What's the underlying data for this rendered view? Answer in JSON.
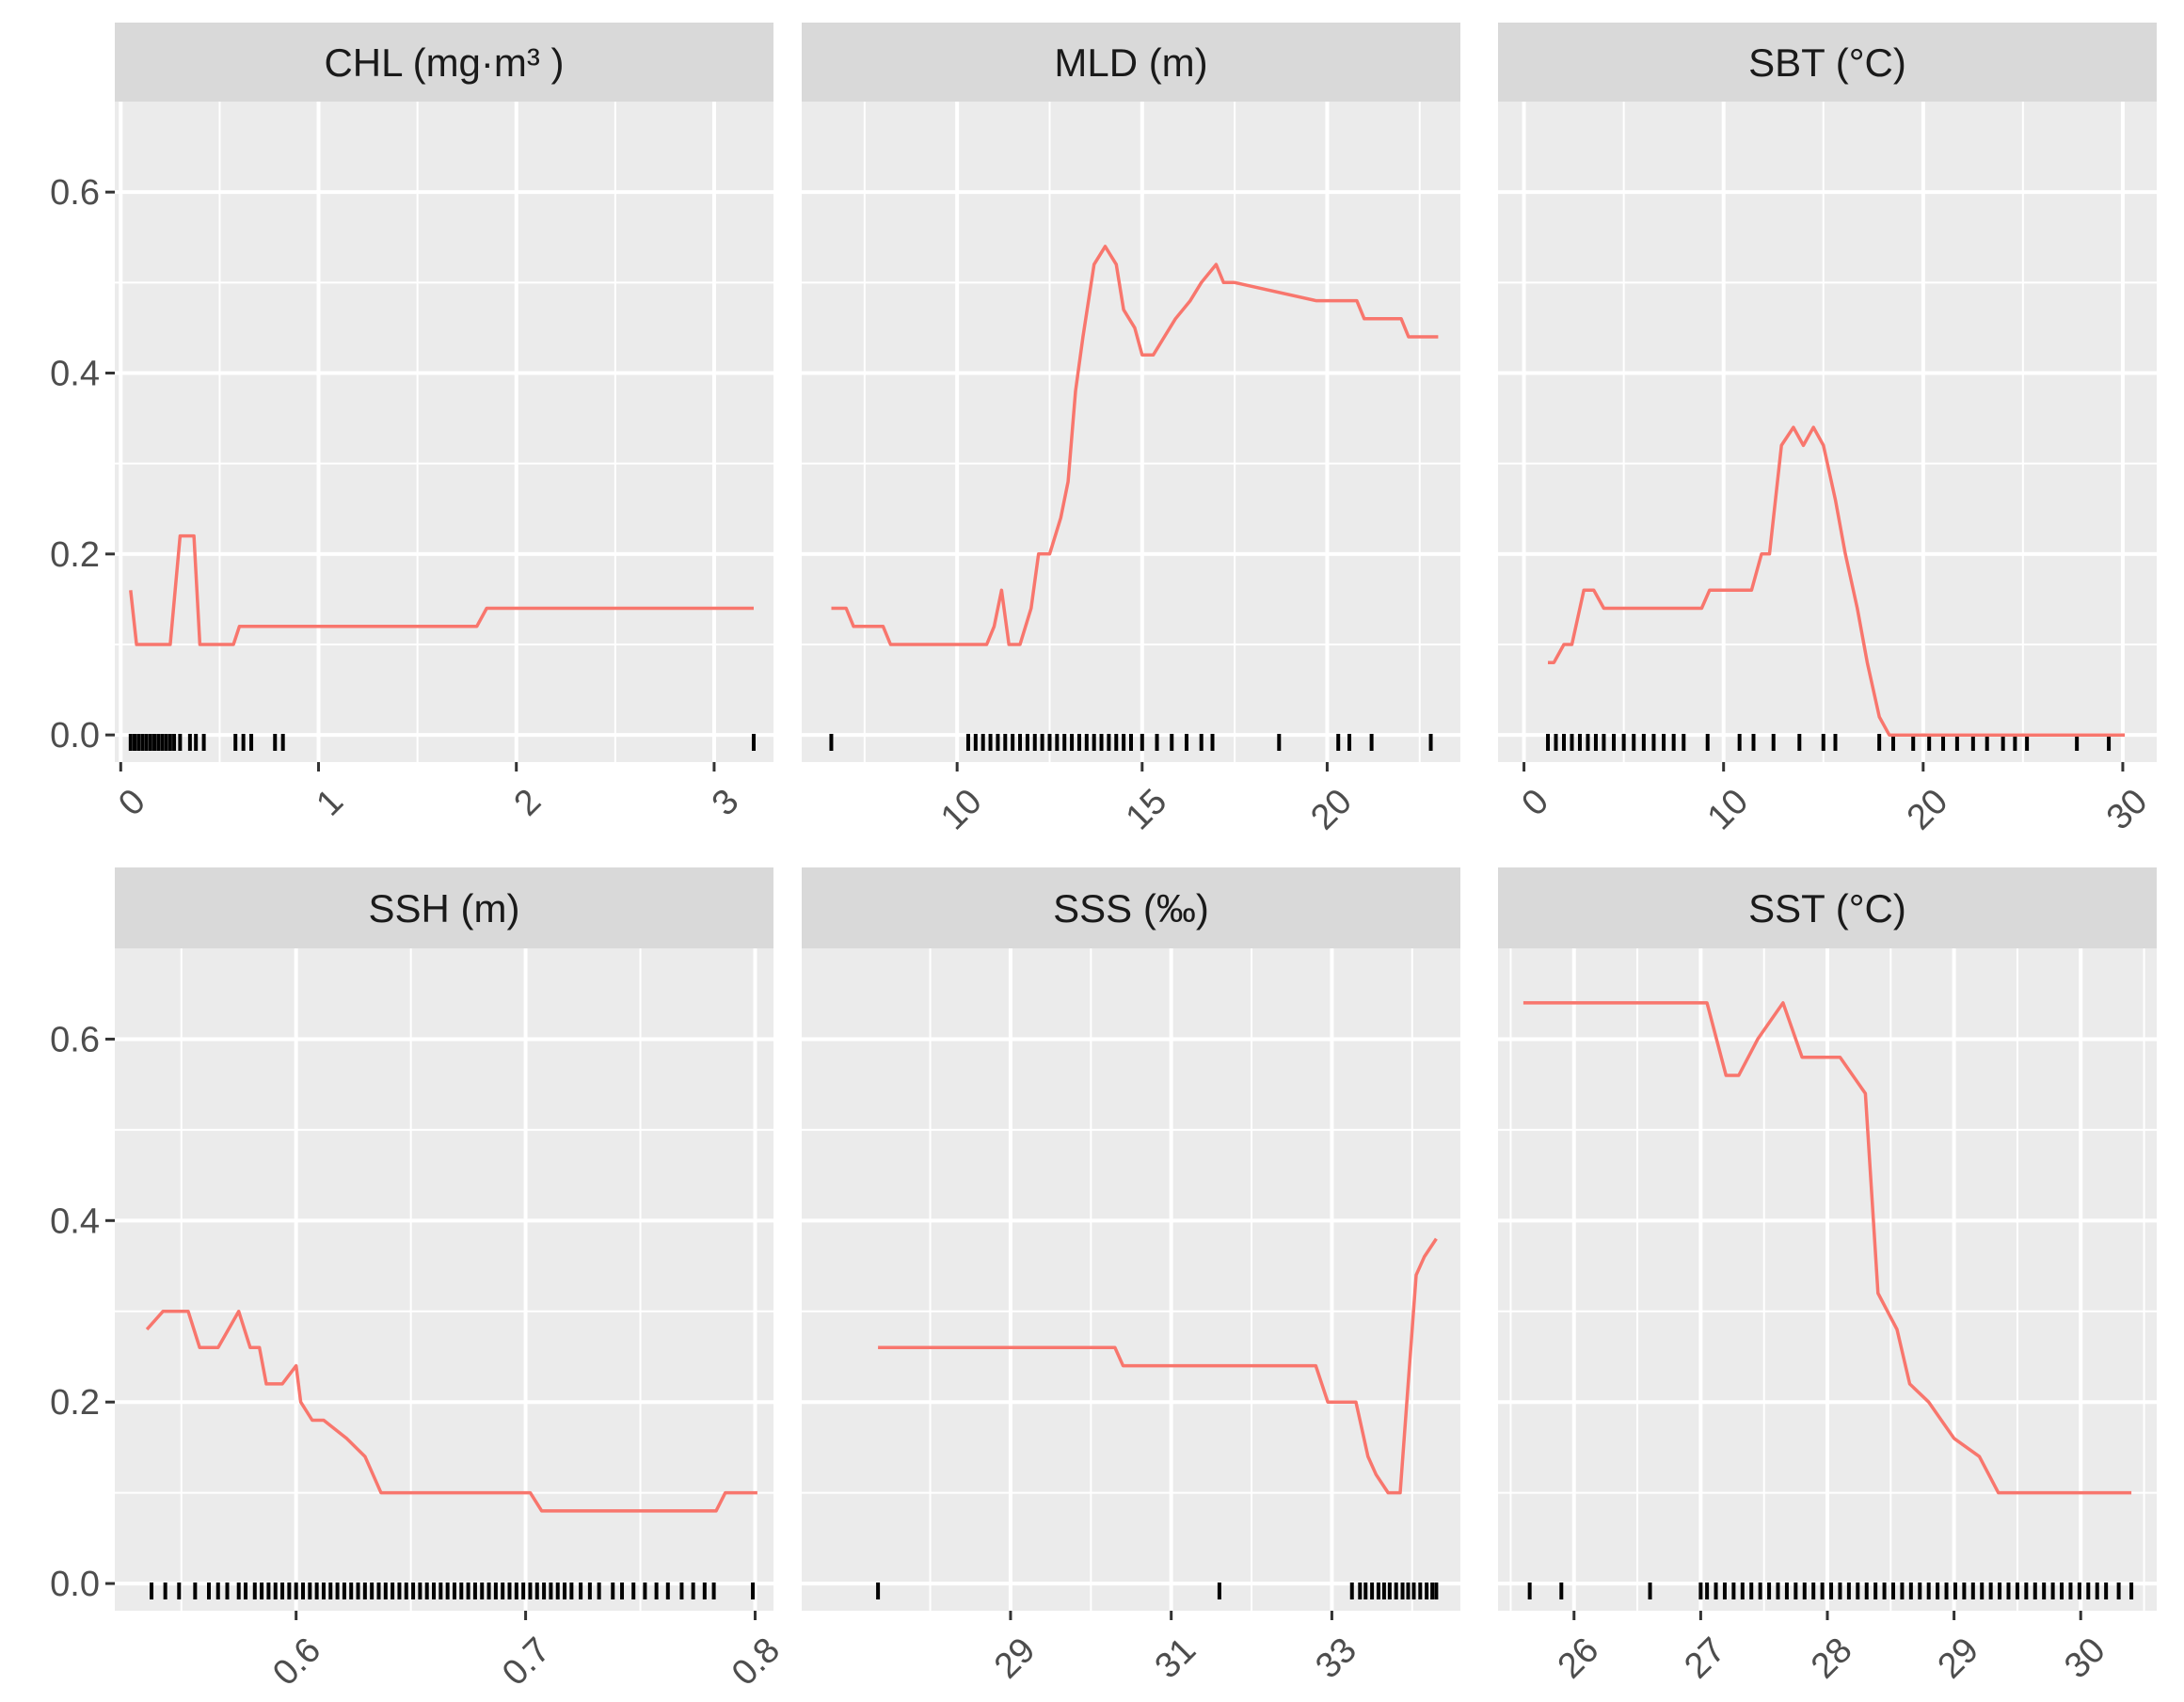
{
  "figure": {
    "background": "#ffffff",
    "panel_background": "#ebebeb",
    "strip_background": "#d9d9d9",
    "grid_color": "#ffffff",
    "line_color": "#f8766d",
    "rug_color": "#000000"
  },
  "chart_data": [
    {
      "type": "line",
      "title": "CHL  (mg·m³ )",
      "xlim": [
        -0.03,
        3.3
      ],
      "ylim": [
        -0.03,
        0.7
      ],
      "x_ticks": [
        0,
        1,
        2,
        3
      ],
      "x_tick_labels": [
        "0",
        "1",
        "2",
        "3"
      ],
      "y_ticks": [
        0.0,
        0.2,
        0.4,
        0.6
      ],
      "y_tick_labels": [
        "0.0",
        "0.2",
        "0.4",
        "0.6"
      ],
      "x": [
        0.05,
        0.08,
        0.18,
        0.25,
        0.3,
        0.37,
        0.4,
        0.57,
        0.6,
        1.8,
        1.85,
        3.2
      ],
      "y": [
        0.16,
        0.1,
        0.1,
        0.1,
        0.22,
        0.22,
        0.1,
        0.1,
        0.12,
        0.12,
        0.14,
        0.14
      ],
      "rug": [
        0.05,
        0.07,
        0.09,
        0.11,
        0.13,
        0.15,
        0.17,
        0.19,
        0.21,
        0.23,
        0.25,
        0.27,
        0.3,
        0.35,
        0.38,
        0.42,
        0.58,
        0.62,
        0.66,
        0.78,
        0.82,
        3.2
      ]
    },
    {
      "type": "line",
      "title": "MLD    (m)",
      "xlim": [
        5.8,
        23.6
      ],
      "ylim": [
        -0.03,
        0.7
      ],
      "x_ticks": [
        10,
        15,
        20
      ],
      "x_tick_labels": [
        "10",
        "15",
        "20"
      ],
      "y_ticks": [
        0.0,
        0.2,
        0.4,
        0.6
      ],
      "y_tick_labels": [
        "0.0",
        "0.2",
        "0.4",
        "0.6"
      ],
      "x": [
        6.6,
        7.0,
        7.2,
        8.0,
        8.2,
        9.0,
        10.8,
        11.0,
        11.2,
        11.4,
        11.7,
        12.0,
        12.2,
        12.5,
        12.8,
        13.0,
        13.2,
        13.4,
        13.7,
        14.0,
        14.3,
        14.5,
        14.8,
        15.0,
        15.3,
        15.6,
        15.9,
        16.3,
        16.6,
        17.0,
        17.2,
        17.5,
        19.7,
        20.0,
        20.8,
        21.0,
        22.0,
        22.2,
        23.0
      ],
      "y": [
        0.14,
        0.14,
        0.12,
        0.12,
        0.1,
        0.1,
        0.1,
        0.12,
        0.16,
        0.1,
        0.1,
        0.14,
        0.2,
        0.2,
        0.24,
        0.28,
        0.38,
        0.44,
        0.52,
        0.54,
        0.52,
        0.47,
        0.45,
        0.42,
        0.42,
        0.44,
        0.46,
        0.48,
        0.5,
        0.52,
        0.5,
        0.5,
        0.48,
        0.48,
        0.48,
        0.46,
        0.46,
        0.44,
        0.44
      ],
      "rug": [
        6.6,
        10.3,
        10.5,
        10.7,
        10.9,
        11.1,
        11.3,
        11.5,
        11.7,
        11.9,
        12.1,
        12.3,
        12.5,
        12.7,
        12.9,
        13.1,
        13.3,
        13.5,
        13.7,
        13.9,
        14.1,
        14.3,
        14.5,
        14.7,
        15.0,
        15.4,
        15.8,
        16.2,
        16.6,
        16.9,
        18.7,
        20.3,
        20.6,
        21.2,
        22.8
      ]
    },
    {
      "type": "line",
      "title": "SBT    (°C)",
      "xlim": [
        -1.3,
        31.7
      ],
      "ylim": [
        -0.03,
        0.7
      ],
      "x_ticks": [
        0,
        10,
        20,
        30
      ],
      "x_tick_labels": [
        "0",
        "10",
        "20",
        "30"
      ],
      "y_ticks": [
        0.0,
        0.2,
        0.4,
        0.6
      ],
      "y_tick_labels": [
        "0.0",
        "0.2",
        "0.4",
        "0.6"
      ],
      "x": [
        1.2,
        1.5,
        2.0,
        2.4,
        3.0,
        3.5,
        4.0,
        8.9,
        9.3,
        11.4,
        11.9,
        12.3,
        12.9,
        13.5,
        14.0,
        14.5,
        15.0,
        15.6,
        16.1,
        16.7,
        17.2,
        17.8,
        18.3,
        30.1
      ],
      "y": [
        0.08,
        0.08,
        0.1,
        0.1,
        0.16,
        0.16,
        0.14,
        0.14,
        0.16,
        0.16,
        0.2,
        0.2,
        0.32,
        0.34,
        0.32,
        0.34,
        0.32,
        0.26,
        0.2,
        0.14,
        0.08,
        0.02,
        0.0,
        0.0
      ],
      "rug": [
        1.2,
        1.6,
        2.0,
        2.4,
        2.8,
        3.2,
        3.6,
        4.0,
        4.5,
        5.0,
        5.5,
        6.0,
        6.5,
        7.0,
        7.5,
        8.0,
        9.2,
        10.8,
        11.5,
        12.5,
        13.8,
        15.0,
        15.6,
        17.8,
        18.5,
        19.5,
        20.3,
        21.0,
        21.7,
        22.5,
        23.2,
        24.0,
        24.6,
        25.2,
        27.7,
        29.3
      ]
    },
    {
      "type": "line",
      "title": "SSH    (m)",
      "xlim": [
        0.521,
        0.808
      ],
      "ylim": [
        -0.03,
        0.7
      ],
      "x_ticks": [
        0.6,
        0.7,
        0.8
      ],
      "x_tick_labels": [
        "0.6",
        "0.7",
        "0.8"
      ],
      "y_ticks": [
        0.0,
        0.2,
        0.4,
        0.6
      ],
      "y_tick_labels": [
        "0.0",
        "0.2",
        "0.4",
        "0.6"
      ],
      "x": [
        0.535,
        0.542,
        0.553,
        0.558,
        0.566,
        0.575,
        0.58,
        0.584,
        0.587,
        0.594,
        0.6,
        0.602,
        0.607,
        0.612,
        0.622,
        0.63,
        0.637,
        0.702,
        0.707,
        0.783,
        0.787,
        0.801
      ],
      "y": [
        0.28,
        0.3,
        0.3,
        0.26,
        0.26,
        0.3,
        0.26,
        0.26,
        0.22,
        0.22,
        0.24,
        0.2,
        0.18,
        0.18,
        0.16,
        0.14,
        0.1,
        0.1,
        0.08,
        0.08,
        0.1,
        0.1
      ],
      "rug": [
        0.537,
        0.543,
        0.549,
        0.556,
        0.562,
        0.566,
        0.57,
        0.575,
        0.578,
        0.582,
        0.585,
        0.588,
        0.591,
        0.594,
        0.597,
        0.6,
        0.603,
        0.606,
        0.609,
        0.612,
        0.615,
        0.618,
        0.621,
        0.624,
        0.627,
        0.63,
        0.633,
        0.636,
        0.639,
        0.642,
        0.645,
        0.648,
        0.651,
        0.654,
        0.657,
        0.66,
        0.663,
        0.666,
        0.669,
        0.672,
        0.675,
        0.678,
        0.681,
        0.684,
        0.687,
        0.69,
        0.693,
        0.696,
        0.699,
        0.702,
        0.705,
        0.708,
        0.711,
        0.714,
        0.717,
        0.72,
        0.724,
        0.728,
        0.732,
        0.738,
        0.742,
        0.747,
        0.752,
        0.757,
        0.762,
        0.768,
        0.773,
        0.778,
        0.782,
        0.799
      ]
    },
    {
      "type": "line",
      "title": "SSS    (‰)",
      "xlim": [
        26.4,
        34.6
      ],
      "ylim": [
        -0.03,
        0.7
      ],
      "x_ticks": [
        29,
        31,
        33
      ],
      "x_tick_labels": [
        "29",
        "31",
        "33"
      ],
      "y_ticks": [
        0.0,
        0.2,
        0.4,
        0.6
      ],
      "y_tick_labels": [
        "0.0",
        "0.2",
        "0.4",
        "0.6"
      ],
      "x": [
        27.35,
        30.3,
        30.4,
        32.8,
        32.95,
        33.3,
        33.45,
        33.55,
        33.7,
        33.85,
        34.05,
        34.15,
        34.3
      ],
      "y": [
        0.26,
        0.26,
        0.24,
        0.24,
        0.2,
        0.2,
        0.14,
        0.12,
        0.1,
        0.1,
        0.34,
        0.36,
        0.38
      ],
      "rug": [
        27.35,
        31.6,
        33.25,
        33.35,
        33.42,
        33.5,
        33.58,
        33.65,
        33.72,
        33.8,
        33.88,
        33.95,
        34.02,
        34.1,
        34.18,
        34.25,
        34.3
      ]
    },
    {
      "type": "line",
      "title": "SST    (°C)",
      "xlim": [
        25.4,
        30.6
      ],
      "ylim": [
        -0.03,
        0.7
      ],
      "x_ticks": [
        26,
        27,
        28,
        29,
        30
      ],
      "x_tick_labels": [
        "26",
        "27",
        "28",
        "29",
        "30"
      ],
      "y_ticks": [
        0.0,
        0.2,
        0.4,
        0.6
      ],
      "y_tick_labels": [
        "0.0",
        "0.2",
        "0.4",
        "0.6"
      ],
      "x": [
        25.6,
        27.05,
        27.2,
        27.3,
        27.45,
        27.65,
        27.8,
        28.1,
        28.3,
        28.4,
        28.55,
        28.65,
        28.8,
        29.0,
        29.2,
        29.35,
        30.4
      ],
      "y": [
        0.64,
        0.64,
        0.56,
        0.56,
        0.6,
        0.64,
        0.58,
        0.58,
        0.54,
        0.32,
        0.28,
        0.22,
        0.2,
        0.16,
        0.14,
        0.1,
        0.1
      ],
      "rug": [
        25.65,
        25.9,
        26.6,
        27.0,
        27.05,
        27.12,
        27.19,
        27.26,
        27.33,
        27.4,
        27.47,
        27.54,
        27.61,
        27.68,
        27.75,
        27.82,
        27.89,
        27.96,
        28.03,
        28.1,
        28.17,
        28.24,
        28.31,
        28.38,
        28.45,
        28.52,
        28.59,
        28.66,
        28.73,
        28.8,
        28.87,
        28.94,
        29.01,
        29.08,
        29.15,
        29.22,
        29.29,
        29.36,
        29.43,
        29.5,
        29.57,
        29.64,
        29.71,
        29.78,
        29.85,
        29.92,
        29.99,
        30.06,
        30.13,
        30.2,
        30.3,
        30.4
      ]
    }
  ]
}
